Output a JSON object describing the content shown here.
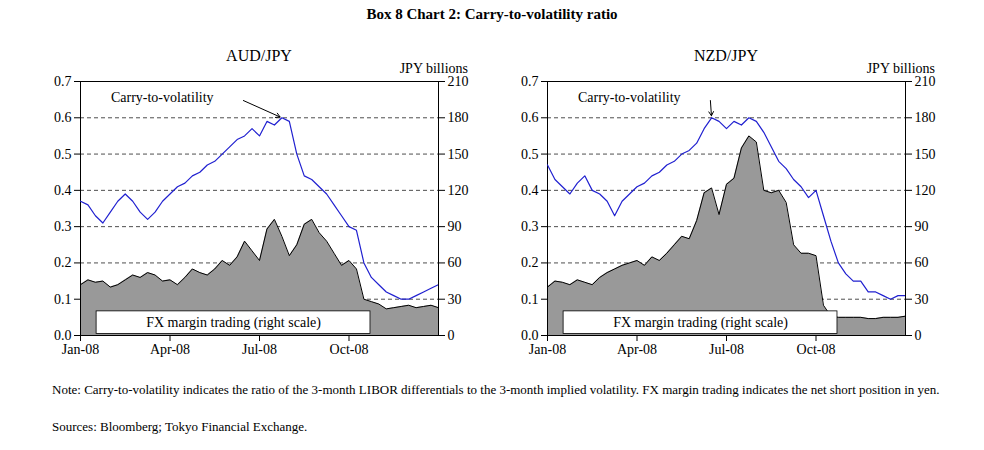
{
  "title": "Box 8 Chart 2: Carry-to-volatility ratio",
  "note": "Note: Carry-to-volatility indicates the ratio of the 3-month LIBOR differentials to the 3-month implied volatility. FX margin trading indicates the net short position in yen.",
  "sources": "Sources: Bloomberg; Tokyo Financial Exchange.",
  "chart_data": [
    {
      "type": "line",
      "title": "AUD/JPY",
      "x": [
        0,
        0.25,
        0.5,
        0.75,
        1,
        1.25,
        1.5,
        1.75,
        2,
        2.25,
        2.5,
        2.75,
        3,
        3.25,
        3.5,
        3.75,
        4,
        4.25,
        4.5,
        4.75,
        5,
        5.25,
        5.5,
        5.75,
        6,
        6.25,
        6.5,
        6.75,
        7,
        7.25,
        7.5,
        7.75,
        8,
        8.25,
        8.5,
        8.75,
        9,
        9.25,
        9.5,
        9.75,
        10,
        10.25,
        10.5,
        10.75,
        11,
        11.25,
        11.5,
        11.75,
        12
      ],
      "xlim": [
        0,
        12
      ],
      "xticks": [
        {
          "value": 0,
          "label": "Jan-08"
        },
        {
          "value": 3,
          "label": "Apr-08"
        },
        {
          "value": 6,
          "label": "Jul-08"
        },
        {
          "value": 9,
          "label": "Oct-08"
        }
      ],
      "ylim": [
        0,
        0.7
      ],
      "yticks": [
        {
          "value": 0,
          "label": "0.0"
        },
        0.1,
        0.2,
        0.3,
        0.4,
        0.5,
        0.6,
        0.7
      ],
      "y2lim": [
        0,
        210
      ],
      "y2ticks": [
        0,
        30,
        60,
        90,
        120,
        150,
        180,
        210
      ],
      "y2label": "JPY billions",
      "grid": true,
      "series": [
        {
          "name": "Carry-to-volatility",
          "type": "line",
          "color": "#2020d0",
          "values": [
            0.37,
            0.36,
            0.33,
            0.31,
            0.34,
            0.37,
            0.39,
            0.37,
            0.34,
            0.32,
            0.34,
            0.37,
            0.39,
            0.41,
            0.42,
            0.44,
            0.45,
            0.47,
            0.48,
            0.5,
            0.52,
            0.54,
            0.55,
            0.57,
            0.55,
            0.59,
            0.58,
            0.6,
            0.59,
            0.5,
            0.44,
            0.43,
            0.41,
            0.39,
            0.36,
            0.33,
            0.3,
            0.29,
            0.2,
            0.16,
            0.14,
            0.12,
            0.11,
            0.1,
            0.1,
            0.11,
            0.12,
            0.13,
            0.14
          ]
        },
        {
          "name": "FX margin trading (right scale)",
          "type": "area",
          "color": "#999999",
          "axis": "y2",
          "values": [
            42,
            46,
            44,
            45,
            40,
            42,
            46,
            50,
            48,
            52,
            50,
            45,
            46,
            42,
            48,
            55,
            52,
            50,
            55,
            62,
            58,
            65,
            78,
            70,
            62,
            88,
            96,
            82,
            66,
            75,
            92,
            96,
            85,
            78,
            68,
            58,
            62,
            55,
            30,
            28,
            26,
            22,
            23,
            24,
            25,
            23,
            24,
            25,
            23
          ]
        }
      ]
    },
    {
      "type": "line",
      "title": "NZD/JPY",
      "x": [
        0,
        0.25,
        0.5,
        0.75,
        1,
        1.25,
        1.5,
        1.75,
        2,
        2.25,
        2.5,
        2.75,
        3,
        3.25,
        3.5,
        3.75,
        4,
        4.25,
        4.5,
        4.75,
        5,
        5.25,
        5.5,
        5.75,
        6,
        6.25,
        6.5,
        6.75,
        7,
        7.25,
        7.5,
        7.75,
        8,
        8.25,
        8.5,
        8.75,
        9,
        9.25,
        9.5,
        9.75,
        10,
        10.25,
        10.5,
        10.75,
        11,
        11.25,
        11.5,
        11.75,
        12
      ],
      "xlim": [
        0,
        12
      ],
      "xticks": [
        {
          "value": 0,
          "label": "Jan-08"
        },
        {
          "value": 3,
          "label": "Apr-08"
        },
        {
          "value": 6,
          "label": "Jul-08"
        },
        {
          "value": 9,
          "label": "Oct-08"
        }
      ],
      "ylim": [
        0,
        0.7
      ],
      "yticks": [
        {
          "value": 0,
          "label": "0.0"
        },
        0.1,
        0.2,
        0.3,
        0.4,
        0.5,
        0.6,
        0.7
      ],
      "y2lim": [
        0,
        210
      ],
      "y2ticks": [
        0,
        30,
        60,
        90,
        120,
        150,
        180,
        210
      ],
      "y2label": "JPY billions",
      "grid": true,
      "series": [
        {
          "name": "Carry-to-volatility",
          "type": "line",
          "color": "#2020d0",
          "values": [
            0.47,
            0.43,
            0.41,
            0.39,
            0.42,
            0.44,
            0.4,
            0.39,
            0.37,
            0.33,
            0.37,
            0.39,
            0.41,
            0.42,
            0.44,
            0.45,
            0.47,
            0.48,
            0.5,
            0.51,
            0.53,
            0.57,
            0.6,
            0.59,
            0.57,
            0.59,
            0.58,
            0.6,
            0.59,
            0.56,
            0.52,
            0.48,
            0.46,
            0.43,
            0.41,
            0.38,
            0.4,
            0.33,
            0.26,
            0.2,
            0.17,
            0.15,
            0.15,
            0.12,
            0.12,
            0.11,
            0.1,
            0.11,
            0.11
          ]
        },
        {
          "name": "FX margin trading (right scale)",
          "type": "area",
          "color": "#999999",
          "axis": "y2",
          "values": [
            40,
            45,
            44,
            42,
            46,
            44,
            42,
            48,
            52,
            55,
            58,
            60,
            62,
            58,
            65,
            62,
            68,
            75,
            82,
            80,
            95,
            118,
            122,
            100,
            125,
            130,
            155,
            165,
            160,
            120,
            118,
            120,
            110,
            75,
            68,
            68,
            66,
            25,
            16,
            15,
            15,
            15,
            15,
            14,
            14,
            15,
            15,
            15,
            16
          ]
        }
      ]
    }
  ]
}
